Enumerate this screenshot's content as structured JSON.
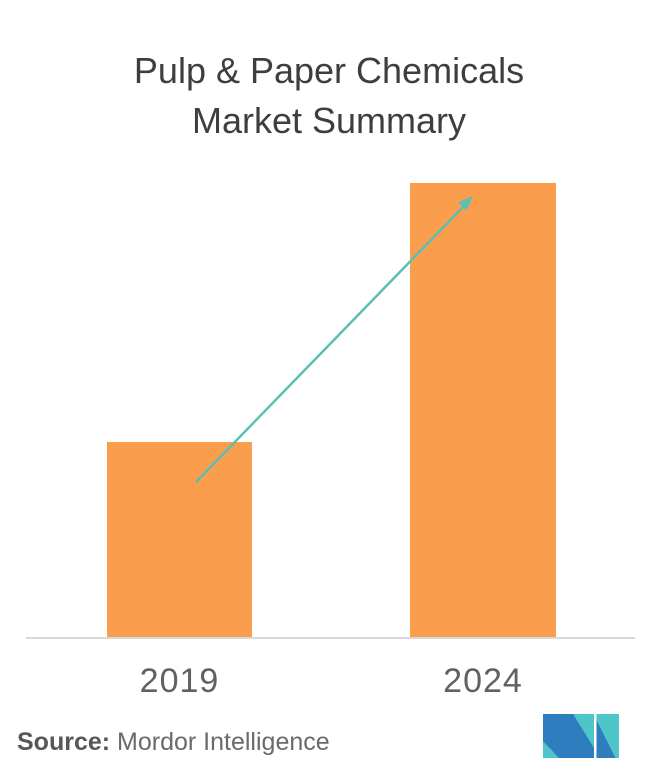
{
  "chart_data": {
    "type": "bar",
    "title": "Pulp & Paper Chemicals Market Summary",
    "categories": [
      "2019",
      "2024"
    ],
    "values": [
      43,
      100
    ],
    "values_unit": "relative index (no numeric axis shown; bar heights estimated from pixels, 2024 = 100)",
    "xlabel": "",
    "ylabel": "",
    "ylim": [
      0,
      100
    ],
    "grid": false,
    "legend": false,
    "bar_color": "#FA9E4D",
    "trend_arrow": {
      "from_category": "2019",
      "to_category": "2024",
      "direction": "up-right",
      "color": "#5BBFB6"
    }
  },
  "colors": {
    "background": "#FFFFFF",
    "title_text": "#3E3E40",
    "axis_line": "#D9D9D9",
    "tick_label_text": "#616161",
    "footer_text": "#6A6A6C"
  },
  "footer": {
    "source_label": "Source:",
    "source_value": "Mordor Intelligence",
    "logo": {
      "name": "mordor-intelligence-logo",
      "blue": "#2E7DBE",
      "teal": "#4EC5C8"
    }
  }
}
